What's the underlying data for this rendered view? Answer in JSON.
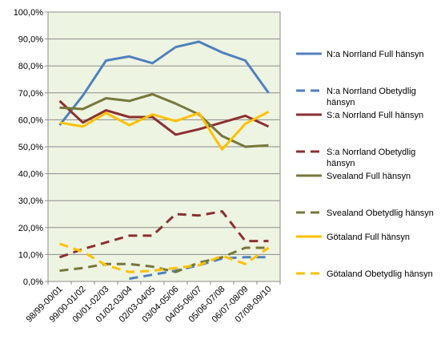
{
  "chart_data": {
    "type": "line",
    "title": "",
    "xlabel": "",
    "ylabel": "",
    "categories": [
      "98/99-00/01",
      "99/00-01/02",
      "00/01-02/03",
      "01/02-03/04",
      "02/03-04/05",
      "03/04-05/06",
      "04/05-06/07",
      "05/06-07/08",
      "06/07-08/09",
      "07/08-09/10"
    ],
    "ylim": [
      0,
      100
    ],
    "y_ticks": [
      "0,0%",
      "10,0%",
      "20,0%",
      "30,0%",
      "40,0%",
      "50,0%",
      "60,0%",
      "70,0%",
      "80,0%",
      "90,0%",
      "100,0%"
    ],
    "grid": "horizontal",
    "plot_background": "#eef4e2",
    "legend_position": "right",
    "series": [
      {
        "name": "N:a Norrland Full hänsyn",
        "color": "#4f81bd",
        "dash": false,
        "values": [
          58,
          69,
          82,
          83.5,
          81,
          87,
          89,
          85,
          82,
          70
        ]
      },
      {
        "name": "N:a Norrland Obetydlig hänsyn",
        "color": "#4f81bd",
        "dash": true,
        "values": [
          null,
          null,
          null,
          1,
          2.5,
          4,
          6,
          8.5,
          9,
          9
        ]
      },
      {
        "name": "S:a Norrland Full hänsyn",
        "color": "#8b3030",
        "dash": false,
        "values": [
          67,
          59,
          63.5,
          61,
          61,
          54.5,
          56.5,
          59,
          61.5,
          57.5
        ]
      },
      {
        "name": "S:a Norrland Obetydlig hänsyn",
        "color": "#8b3030",
        "dash": true,
        "values": [
          9,
          12,
          14.5,
          17,
          17,
          25,
          24.5,
          26,
          15,
          15
        ]
      },
      {
        "name": "Svealand Full hänsyn",
        "color": "#77773a",
        "dash": false,
        "values": [
          64.5,
          64,
          68,
          67,
          69.5,
          66,
          62,
          54,
          50,
          50.5
        ]
      },
      {
        "name": "Svealand Obetydlig hänsyn",
        "color": "#77773a",
        "dash": true,
        "values": [
          4,
          5,
          6.5,
          6.5,
          5.5,
          3.5,
          7,
          9,
          12.5,
          12.5
        ]
      },
      {
        "name": "Götaland Full hänsyn",
        "color": "#ffc000",
        "dash": false,
        "values": [
          59,
          57.5,
          62.5,
          58,
          62,
          59.5,
          62.5,
          49,
          58.5,
          63
        ]
      },
      {
        "name": "Götaland Obetydlig hänsyn",
        "color": "#ffc000",
        "dash": true,
        "values": [
          14,
          11,
          6,
          3.5,
          4,
          5,
          6,
          9.5,
          6.5,
          12.5
        ]
      }
    ]
  }
}
